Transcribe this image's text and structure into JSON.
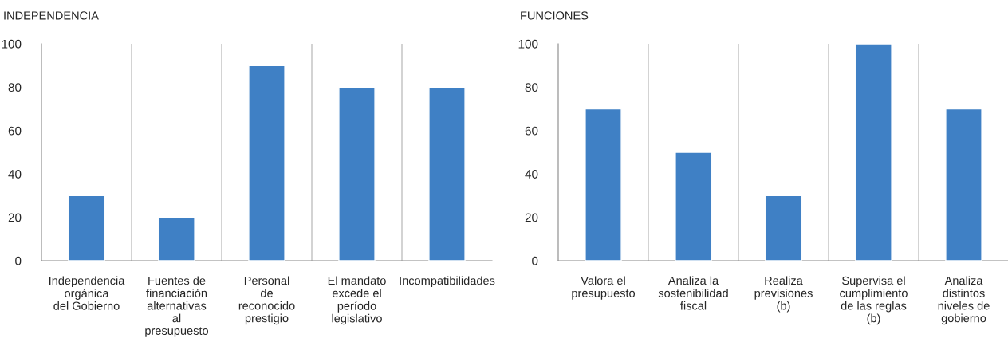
{
  "chart_data": [
    {
      "type": "bar",
      "title": "INDEPENDENCIA",
      "categories": [
        "Independencia\norgánica\ndel Gobierno",
        "Fuentes de\nfinanciación\nalternativas\nal\npresupuesto",
        "Personal\nde\nreconocido\nprestigio",
        "El mandato\nexcede el\nperíodo\nlegislativo",
        "Incompatibilidades"
      ],
      "values": [
        30,
        20,
        90,
        80,
        80
      ],
      "color": "#3f80c5",
      "ylim": [
        0,
        100
      ],
      "yticks": [
        0,
        20,
        40,
        60,
        80,
        100
      ],
      "grid": "x"
    },
    {
      "type": "bar",
      "title": "FUNCIONES",
      "categories": [
        "Valora el\npresupuesto",
        "Analiza la\nsostenibilidad\nfiscal",
        "Realiza\nprevisiones\n(b)",
        "Supervisa el\ncumplimiento\nde las reglas\n(b)",
        "Analiza\ndistintos\nniveles de\ngobierno"
      ],
      "values": [
        70,
        50,
        30,
        100,
        70
      ],
      "color": "#3f80c5",
      "ylim": [
        0,
        100
      ],
      "yticks": [
        0,
        20,
        40,
        60,
        80,
        100
      ],
      "grid": "x"
    }
  ]
}
